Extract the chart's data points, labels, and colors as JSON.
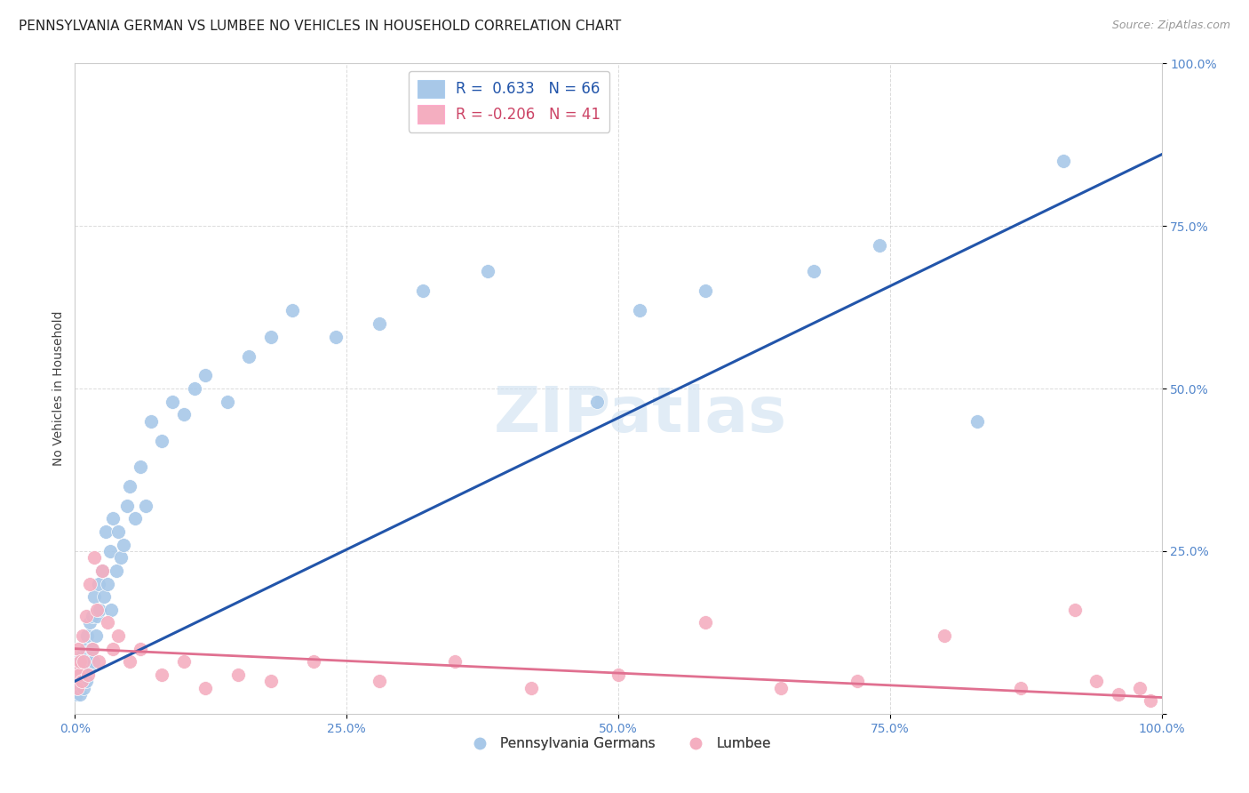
{
  "title": "PENNSYLVANIA GERMAN VS LUMBEE NO VEHICLES IN HOUSEHOLD CORRELATION CHART",
  "source": "Source: ZipAtlas.com",
  "ylabel": "No Vehicles in Household",
  "legend_blue_r": "R =  0.633",
  "legend_blue_n": "N = 66",
  "legend_pink_r": "R = -0.206",
  "legend_pink_n": "N = 41",
  "blue_color": "#a8c8e8",
  "pink_color": "#f4aec0",
  "blue_line_color": "#2255aa",
  "pink_line_color": "#e07090",
  "watermark": "ZIPatlas",
  "blue_points_x": [
    0.001,
    0.002,
    0.002,
    0.003,
    0.003,
    0.004,
    0.004,
    0.005,
    0.005,
    0.006,
    0.007,
    0.007,
    0.008,
    0.008,
    0.009,
    0.01,
    0.01,
    0.011,
    0.012,
    0.013,
    0.014,
    0.015,
    0.016,
    0.017,
    0.018,
    0.019,
    0.02,
    0.022,
    0.023,
    0.025,
    0.027,
    0.028,
    0.03,
    0.032,
    0.033,
    0.035,
    0.038,
    0.04,
    0.042,
    0.045,
    0.048,
    0.05,
    0.055,
    0.06,
    0.065,
    0.07,
    0.08,
    0.09,
    0.1,
    0.11,
    0.12,
    0.14,
    0.16,
    0.18,
    0.2,
    0.24,
    0.28,
    0.32,
    0.38,
    0.48,
    0.52,
    0.58,
    0.68,
    0.74,
    0.83,
    0.91
  ],
  "blue_points_y": [
    0.03,
    0.04,
    0.07,
    0.05,
    0.08,
    0.04,
    0.06,
    0.03,
    0.07,
    0.05,
    0.09,
    0.06,
    0.04,
    0.08,
    0.06,
    0.1,
    0.05,
    0.12,
    0.08,
    0.07,
    0.14,
    0.1,
    0.15,
    0.08,
    0.18,
    0.12,
    0.15,
    0.2,
    0.16,
    0.22,
    0.18,
    0.28,
    0.2,
    0.25,
    0.16,
    0.3,
    0.22,
    0.28,
    0.24,
    0.26,
    0.32,
    0.35,
    0.3,
    0.38,
    0.32,
    0.45,
    0.42,
    0.48,
    0.46,
    0.5,
    0.52,
    0.48,
    0.55,
    0.58,
    0.62,
    0.58,
    0.6,
    0.65,
    0.68,
    0.48,
    0.62,
    0.65,
    0.68,
    0.72,
    0.45,
    0.85
  ],
  "pink_points_x": [
    0.001,
    0.002,
    0.003,
    0.004,
    0.005,
    0.006,
    0.007,
    0.008,
    0.01,
    0.012,
    0.014,
    0.016,
    0.018,
    0.02,
    0.022,
    0.025,
    0.03,
    0.035,
    0.04,
    0.05,
    0.06,
    0.08,
    0.1,
    0.12,
    0.15,
    0.18,
    0.22,
    0.28,
    0.35,
    0.42,
    0.5,
    0.58,
    0.65,
    0.72,
    0.8,
    0.87,
    0.92,
    0.94,
    0.96,
    0.98,
    0.99
  ],
  "pink_points_y": [
    0.07,
    0.04,
    0.1,
    0.06,
    0.08,
    0.05,
    0.12,
    0.08,
    0.15,
    0.06,
    0.2,
    0.1,
    0.24,
    0.16,
    0.08,
    0.22,
    0.14,
    0.1,
    0.12,
    0.08,
    0.1,
    0.06,
    0.08,
    0.04,
    0.06,
    0.05,
    0.08,
    0.05,
    0.08,
    0.04,
    0.06,
    0.14,
    0.04,
    0.05,
    0.12,
    0.04,
    0.16,
    0.05,
    0.03,
    0.04,
    0.02
  ],
  "blue_line_x": [
    0.0,
    1.0
  ],
  "blue_line_y": [
    0.05,
    0.86
  ],
  "pink_line_x": [
    0.0,
    1.0
  ],
  "pink_line_y": [
    0.1,
    0.025
  ],
  "xlim": [
    0.0,
    1.0
  ],
  "ylim": [
    0.0,
    1.0
  ],
  "background_color": "#ffffff",
  "grid_color": "#cccccc",
  "title_fontsize": 11,
  "source_fontsize": 9,
  "tick_label_color": "#5588cc",
  "legend_label_color_blue": "#2255aa",
  "legend_label_color_pink": "#cc4466",
  "bottom_legend_label_color": "#444444"
}
